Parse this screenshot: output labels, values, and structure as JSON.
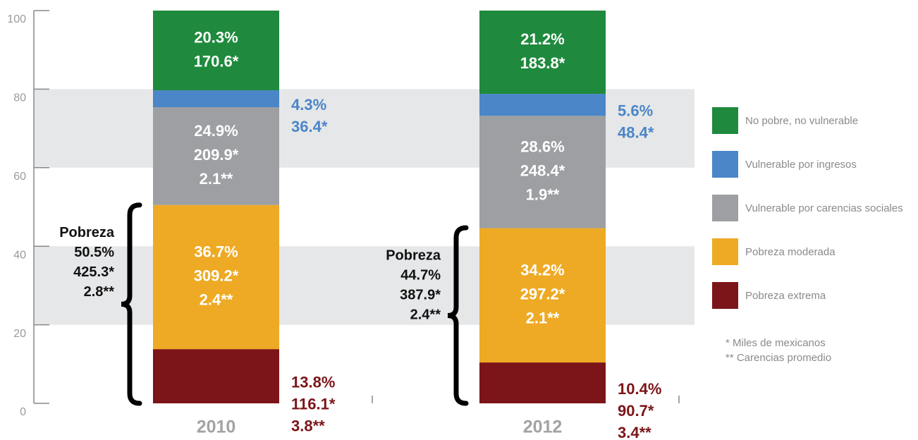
{
  "chart_data": {
    "type": "bar",
    "stacked": true,
    "categories": [
      "2010",
      "2012"
    ],
    "ylim": [
      0,
      100
    ],
    "yticks": [
      0,
      20,
      40,
      60,
      80,
      100
    ],
    "grid": "bands",
    "legend": "right",
    "series": [
      {
        "name": "Pobreza extrema",
        "color": "#7b1519",
        "label_position": "outside",
        "values": [
          13.8,
          10.4
        ],
        "value_labels": [
          "13.8%",
          "10.4%"
        ],
        "people_labels": [
          "116.1*",
          "90.7*"
        ],
        "deprivation_labels": [
          "3.8**",
          "3.4**"
        ]
      },
      {
        "name": "Pobreza moderada",
        "color": "#eeaa24",
        "label_position": "inside",
        "values": [
          36.7,
          34.2
        ],
        "value_labels": [
          "36.7%",
          "34.2%"
        ],
        "people_labels": [
          "309.2*",
          "297.2*"
        ],
        "deprivation_labels": [
          "2.4**",
          "2.1**"
        ]
      },
      {
        "name": "Vulnerable por carencias sociales",
        "color": "#9d9fa2",
        "label_position": "inside",
        "values": [
          24.9,
          28.6
        ],
        "value_labels": [
          "24.9%",
          "28.6%"
        ],
        "people_labels": [
          "209.9*",
          "248.4*"
        ],
        "deprivation_labels": [
          "2.1**",
          "1.9**"
        ]
      },
      {
        "name": "Vulnerable por ingresos",
        "color": "#4a86c8",
        "label_position": "outside",
        "values": [
          4.3,
          5.6
        ],
        "value_labels": [
          "4.3%",
          "5.6%"
        ],
        "people_labels": [
          "36.4*",
          "48.4*"
        ],
        "deprivation_labels": [
          null,
          null
        ]
      },
      {
        "name": "No pobre, no vulnerable",
        "color": "#1f8a3d",
        "label_position": "inside",
        "values": [
          20.3,
          21.2
        ],
        "value_labels": [
          "20.3%",
          "21.2%"
        ],
        "people_labels": [
          "170.6*",
          "183.8*"
        ],
        "deprivation_labels": [
          null,
          null
        ]
      }
    ],
    "annotations": [
      {
        "label": "Pobreza",
        "value": 50.5,
        "value_label": "50.5%",
        "people_label": "425.3*",
        "deprivation_label": "2.8**"
      },
      {
        "label": "Pobreza",
        "value": 44.7,
        "value_label": "44.7%",
        "people_label": "387.9*",
        "deprivation_label": "2.4**"
      }
    ],
    "footnotes": [
      "* Miles de mexicanos",
      "** Carencias promedio"
    ]
  }
}
